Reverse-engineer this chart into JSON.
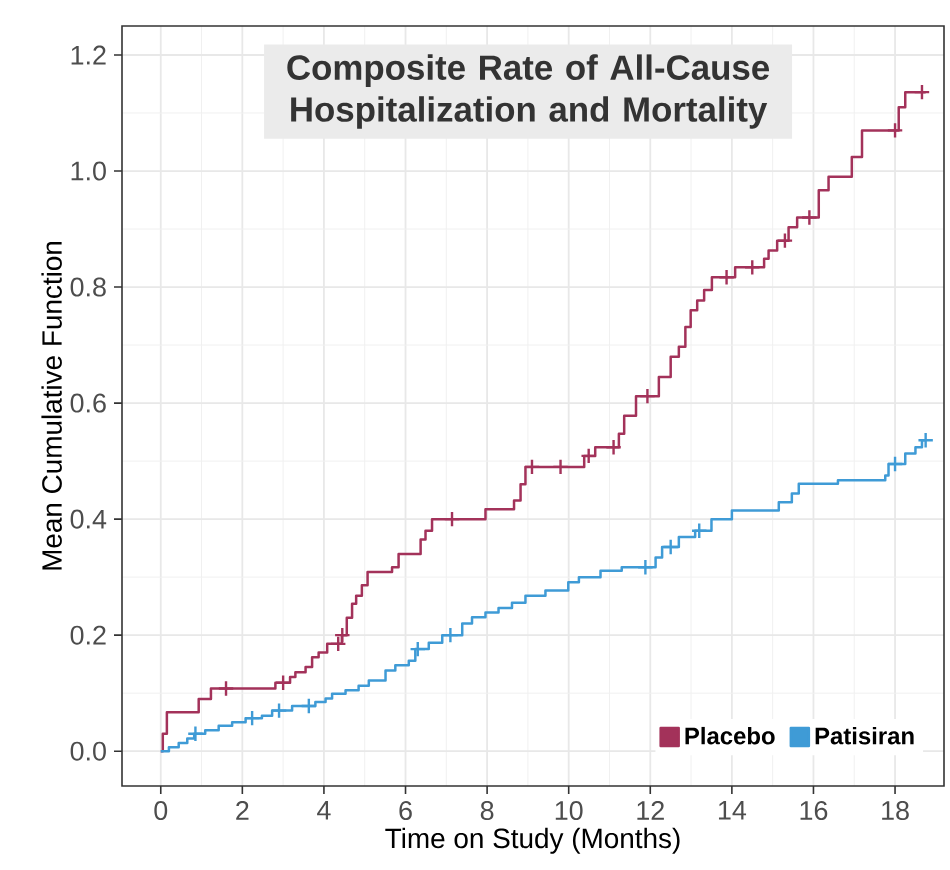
{
  "chart_data": {
    "type": "step",
    "title": "Composite Rate of All-Cause Hospitalization and Mortality",
    "xlabel": "Time on Study (Months)",
    "ylabel": "Mean Cumulative Function",
    "xlim": [
      -0.95,
      19.2
    ],
    "ylim": [
      -0.06,
      1.25
    ],
    "xticks": [
      0,
      2,
      4,
      6,
      8,
      10,
      12,
      14,
      16,
      18
    ],
    "yticks": [
      {
        "value": 0,
        "label": "0.0"
      },
      0.2,
      0.4,
      0.6,
      0.8,
      {
        "value": 1,
        "label": "1.0"
      },
      1.2
    ],
    "grid": true,
    "legend": "bottom right",
    "series": [
      {
        "name": "Placebo",
        "color": "#a3325a",
        "x": [
          0,
          0.05,
          0.15,
          0.93,
          1.23,
          2.81,
          3.17,
          3.3,
          3.55,
          3.71,
          3.87,
          4.08,
          4.44,
          4.56,
          4.69,
          4.79,
          4.93,
          5.07,
          5.67,
          5.83,
          6.37,
          6.49,
          6.65,
          7.96,
          8.66,
          8.82,
          8.94,
          10.38,
          10.65,
          11.23,
          11.36,
          11.65,
          12.21,
          12.5,
          12.7,
          12.86,
          12.99,
          13.15,
          13.32,
          13.51,
          14.08,
          14.79,
          14.9,
          15.11,
          15.39,
          15.6,
          16.13,
          16.37,
          16.94,
          17.19,
          18.09,
          18.25,
          18.75
        ],
        "values": [
          0,
          0.03,
          0.067,
          0.09,
          0.108,
          0.118,
          0.128,
          0.136,
          0.145,
          0.162,
          0.17,
          0.185,
          0.2,
          0.23,
          0.254,
          0.268,
          0.286,
          0.309,
          0.317,
          0.34,
          0.365,
          0.38,
          0.4,
          0.417,
          0.432,
          0.46,
          0.49,
          0.509,
          0.524,
          0.547,
          0.578,
          0.612,
          0.645,
          0.68,
          0.697,
          0.731,
          0.76,
          0.777,
          0.795,
          0.817,
          0.834,
          0.849,
          0.863,
          0.88,
          0.903,
          0.92,
          0.967,
          0.99,
          1.024,
          1.07,
          1.11,
          1.136,
          1.136
        ]
      },
      {
        "name": "Patisiran",
        "color": "#3f9bd6",
        "x": [
          0,
          0.2,
          0.44,
          0.65,
          0.82,
          1.09,
          1.42,
          1.75,
          2.08,
          2.48,
          2.73,
          3.22,
          3.79,
          4.04,
          4.2,
          4.53,
          4.85,
          5.1,
          5.51,
          5.75,
          6.08,
          6.24,
          6.57,
          6.9,
          7.39,
          7.63,
          7.96,
          8.28,
          8.61,
          8.94,
          9.43,
          9.99,
          10.25,
          10.78,
          11.3,
          12.13,
          12.29,
          12.7,
          13.1,
          13.5,
          14.0,
          15.15,
          15.47,
          15.64,
          16.6,
          17.76,
          17.84,
          18.25,
          18.5,
          18.66,
          18.75
        ],
        "values": [
          0,
          0.007,
          0.014,
          0.022,
          0.03,
          0.036,
          0.044,
          0.05,
          0.057,
          0.061,
          0.07,
          0.078,
          0.085,
          0.091,
          0.099,
          0.105,
          0.113,
          0.122,
          0.139,
          0.148,
          0.156,
          0.176,
          0.187,
          0.2,
          0.22,
          0.231,
          0.239,
          0.247,
          0.256,
          0.268,
          0.277,
          0.291,
          0.3,
          0.311,
          0.317,
          0.334,
          0.352,
          0.369,
          0.38,
          0.4,
          0.415,
          0.429,
          0.444,
          0.461,
          0.467,
          0.475,
          0.495,
          0.513,
          0.524,
          0.536,
          0.536
        ]
      },
      {
        "color": "#a3325a",
        "type": "scatter",
        "marker": "cross",
        "x": [
          1.6,
          3.0,
          4.35,
          4.45,
          7.14,
          9.1,
          9.8,
          10.49,
          11.1,
          11.93,
          13.87,
          14.5,
          15.3,
          15.9,
          18.0,
          18.66
        ],
        "values": [
          0.108,
          0.118,
          0.185,
          0.2,
          0.4,
          0.49,
          0.49,
          0.509,
          0.524,
          0.612,
          0.817,
          0.834,
          0.88,
          0.92,
          1.07,
          1.136
        ]
      },
      {
        "color": "#3f9bd6",
        "type": "scatter",
        "marker": "cross",
        "x": [
          0.85,
          2.24,
          2.9,
          3.63,
          6.3,
          7.1,
          11.88,
          12.5,
          13.2,
          18.0,
          18.75
        ],
        "values": [
          0.03,
          0.057,
          0.07,
          0.078,
          0.176,
          0.2,
          0.317,
          0.352,
          0.38,
          0.495,
          0.536
        ]
      }
    ]
  }
}
